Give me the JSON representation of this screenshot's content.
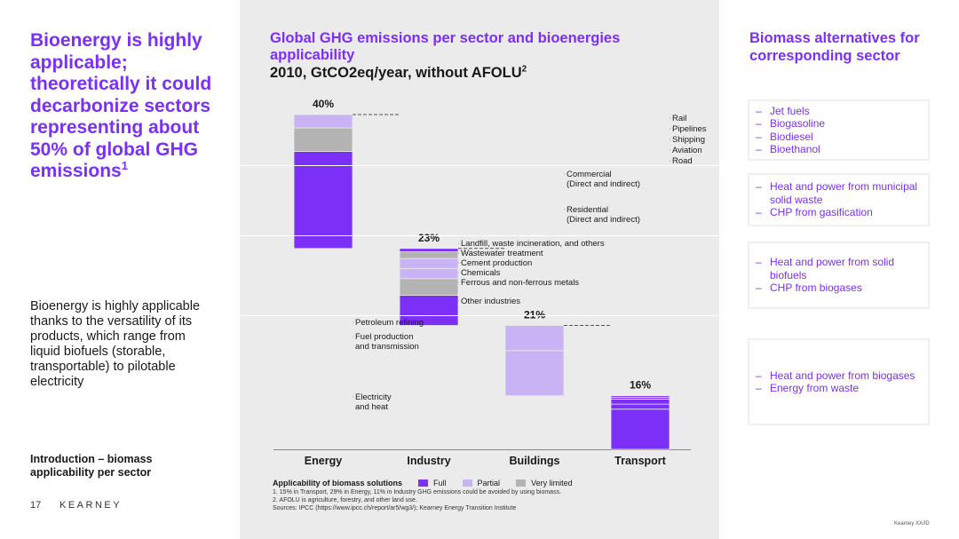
{
  "left": {
    "headline": "Bioenergy is highly applicable; theoretically it could decarbonize sectors representing about 50% of global GHG emissions",
    "headline_sup": "1",
    "body": "Bioenergy is highly applicable thanks to the versatility of its products, which range from liquid biofuels (storable, transportable) to pilotable electricity",
    "section_label": "Introduction – biomass applicability per sector",
    "page_number": "17",
    "brand": "KEARNEY"
  },
  "chart": {
    "title": "Global GHG emissions per sector and bioenergies applicability",
    "subtitle": "2010, GtCO2eq/year, without AFOLU",
    "subtitle_sup": "2",
    "legend_title": "Applicability of biomass solutions",
    "footnotes": [
      "1. 15% in Transport, 29% in Energy, 11% in Industry GHG emissions could be avoided by using biomass.",
      "2. AFOLU is agriculture, forestry, and other land use.",
      "Sources: IPCC (https://www.ipcc.ch/report/ar5/wg3/); Kearney Energy Transition Institute"
    ]
  },
  "chart_data": {
    "type": "bar",
    "subtype": "stacked-waterfall",
    "unit": "% of global GHG emissions",
    "categories": [
      "Energy",
      "Industry",
      "Buildings",
      "Transport"
    ],
    "totals": [
      "40%",
      "23%",
      "21%",
      "16%"
    ],
    "total_values": [
      40,
      23,
      21,
      16
    ],
    "legend": [
      {
        "key": "full",
        "label": "Full",
        "color": "#7b2ff7"
      },
      {
        "key": "partial",
        "label": "Partial",
        "color": "#c9b3f5"
      },
      {
        "key": "limited",
        "label": "Very limited",
        "color": "#b3b3b3"
      }
    ],
    "sectors": [
      {
        "category": "Energy",
        "segments": [
          {
            "label": "Electricity and heat",
            "value": 29,
            "applicability": "full"
          },
          {
            "label": "Fuel production and transmission",
            "value": 7,
            "applicability": "limited"
          },
          {
            "label": "Petroleum refining",
            "value": 4,
            "applicability": "partial"
          }
        ]
      },
      {
        "category": "Industry",
        "segments": [
          {
            "label": "Other industries",
            "value": 9,
            "applicability": "full"
          },
          {
            "label": "Ferrous and non-ferrous metals",
            "value": 5,
            "applicability": "limited"
          },
          {
            "label": "Chemicals",
            "value": 3,
            "applicability": "partial"
          },
          {
            "label": "Cement production",
            "value": 3,
            "applicability": "partial"
          },
          {
            "label": "Wastewater treatment",
            "value": 2,
            "applicability": "limited"
          },
          {
            "label": "Landfill, waste incineration, and others",
            "value": 1,
            "applicability": "full"
          }
        ]
      },
      {
        "category": "Buildings",
        "segments": [
          {
            "label": "Residential (Direct and indirect)",
            "value": 13.5,
            "applicability": "partial"
          },
          {
            "label": "Commercial (Direct and indirect)",
            "value": 7.5,
            "applicability": "partial"
          }
        ]
      },
      {
        "category": "Transport",
        "segments": [
          {
            "label": "Road",
            "value": 12,
            "applicability": "full"
          },
          {
            "label": "Aviation",
            "value": 1.5,
            "applicability": "full"
          },
          {
            "label": "Shipping",
            "value": 1.5,
            "applicability": "full"
          },
          {
            "label": "Pipelines",
            "value": 0.5,
            "applicability": "full"
          },
          {
            "label": "Rail",
            "value": 0.5,
            "applicability": "full"
          }
        ]
      }
    ]
  },
  "right": {
    "title": "Biomass alternatives for corresponding sector",
    "groups": [
      {
        "items": [
          "Jet fuels",
          "Biogasoline",
          "Biodiesel",
          "Bioethanol"
        ]
      },
      {
        "items": [
          "Heat and power from municipal solid waste",
          "CHP from gasification"
        ]
      },
      {
        "items": [
          "Heat and power from solid biofuels",
          "CHP from biogases"
        ]
      },
      {
        "items": [
          "Heat and power from biogases",
          "Energy from waste"
        ]
      }
    ],
    "dash": "–",
    "copyright": "Kearney XX/ID"
  }
}
